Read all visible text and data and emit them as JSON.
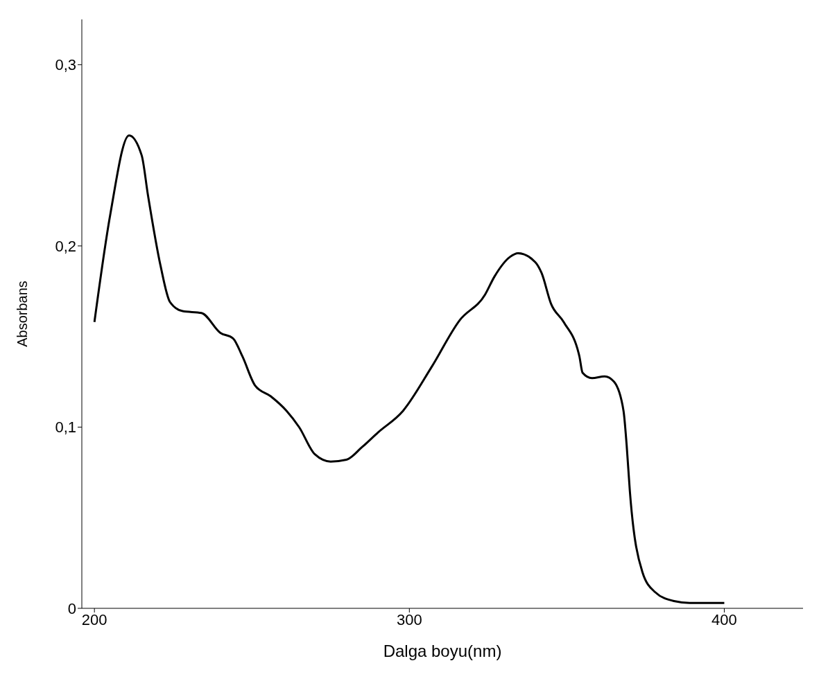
{
  "chart_data": {
    "type": "line",
    "xlabel": "Dalga boyu(nm)",
    "ylabel": "Absorbans",
    "color": "#000000",
    "x": [
      200,
      205,
      211,
      215,
      217,
      221,
      224,
      228,
      234,
      240,
      244,
      247,
      251,
      256,
      261,
      265,
      270,
      275,
      280,
      285,
      290,
      298,
      307,
      316,
      324,
      327,
      332,
      334.5,
      340,
      342,
      345,
      349,
      354,
      355,
      358,
      362,
      365,
      368,
      369,
      370,
      374,
      378,
      384,
      389,
      400
    ],
    "values": [
      0.158,
      0.217,
      0.261,
      0.25,
      0.228,
      0.189,
      0.169,
      0.164,
      0.163,
      0.152,
      0.149,
      0.139,
      0.123,
      0.117,
      0.109,
      0.1,
      0.085,
      0.081,
      0.082,
      0.089,
      0.097,
      0.109,
      0.133,
      0.159,
      0.173,
      0.183,
      0.194,
      0.196,
      0.191,
      0.185,
      0.168,
      0.158,
      0.139,
      0.13,
      0.127,
      0.128,
      0.125,
      0.109,
      0.09,
      0.065,
      0.02,
      0.009,
      0.004,
      0.003,
      0.003
    ],
    "xlim": [
      196,
      425
    ],
    "ylim": [
      0,
      0.325
    ],
    "xticks": [
      200,
      300,
      400
    ],
    "yticks": [
      0,
      {
        "value": 0.1,
        "label": "0,1"
      },
      {
        "value": 0.2,
        "label": "0,2"
      },
      {
        "value": 0.3,
        "label": "0,3"
      }
    ]
  }
}
